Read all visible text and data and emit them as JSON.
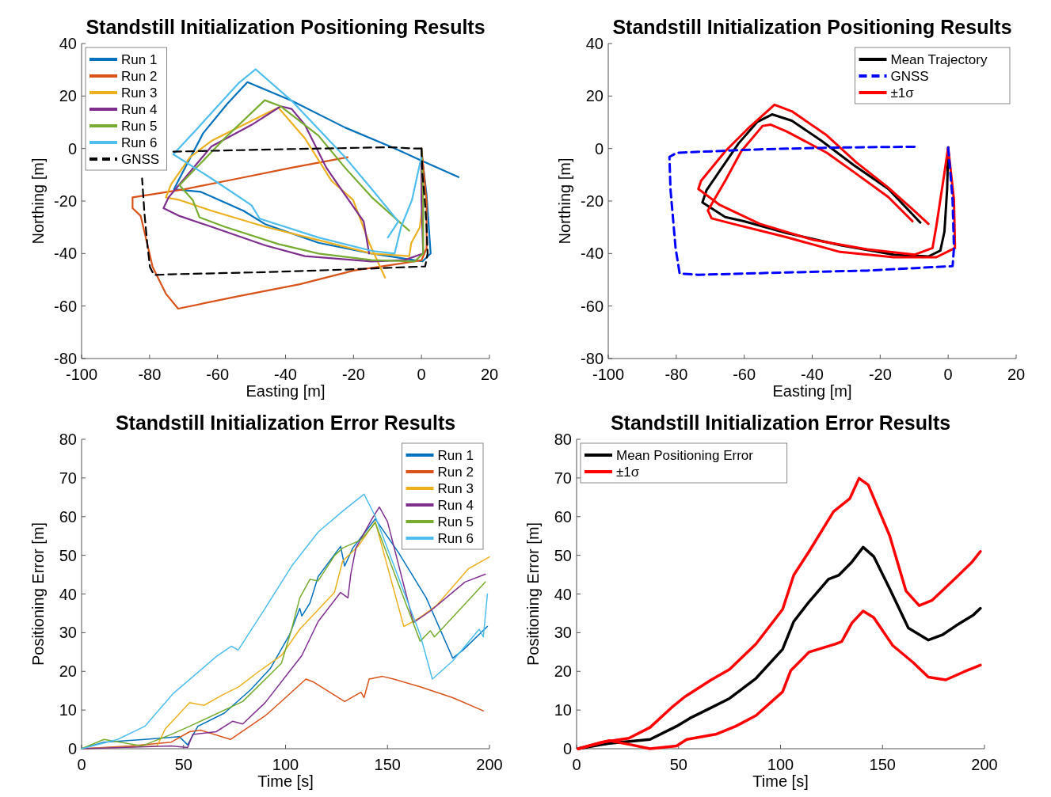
{
  "chart_data": [
    {
      "type": "line",
      "title": "Standstill Initialization Positioning Results",
      "xlabel": "Easting [m]",
      "ylabel": "Northing [m]",
      "xlim": [
        -100,
        20
      ],
      "xticks": [
        -100,
        -80,
        -60,
        -40,
        -20,
        0,
        20
      ],
      "ylim": [
        -80,
        40
      ],
      "yticks": [
        -80,
        -60,
        -40,
        -20,
        0,
        20,
        40
      ],
      "grid": false,
      "legend": "top left",
      "line_style": "solid",
      "series": [
        {
          "name": "Run 1",
          "color": "#0072bd",
          "x": [
            0,
            1.5,
            2.7,
            0.3,
            -14.6,
            -30.3,
            -46,
            -52.4,
            -64.9,
            -72.8,
            -71.2,
            -64.2,
            -57.1,
            -51.2,
            -38.2,
            -22.5,
            -8.3,
            -0.5,
            10.9
          ],
          "values": [
            -1.2,
            -17.6,
            -40,
            -43,
            -40,
            -35.9,
            -28.8,
            -23.7,
            -16.5,
            -15.5,
            -11.4,
            5.9,
            17.1,
            25.3,
            18.2,
            8,
            0.3,
            -4.3,
            -10.9
          ]
        },
        {
          "name": "Run 2",
          "color": "#d95319",
          "x": [
            0,
            1.5,
            1.5,
            0,
            -20,
            -35.8,
            -54,
            -71.6,
            -75.2,
            -79.1,
            -82.6,
            -85,
            -85,
            -69.7,
            -53.9,
            -38.2,
            -21.7
          ],
          "values": [
            0,
            -20,
            -38,
            -42.6,
            -46.5,
            -51.7,
            -56.3,
            -61,
            -55.3,
            -45.1,
            -25.7,
            -22.7,
            -18.6,
            -15.5,
            -11.4,
            -7.3,
            -3.3
          ]
        },
        {
          "name": "Run 3",
          "color": "#edb120",
          "x": [
            0,
            0.5,
            -0.5,
            -3,
            -3.6,
            -14.6,
            -30.3,
            -46,
            -61.8,
            -71.2,
            -75.2,
            -73.6,
            -68.1,
            -61.8,
            -46.1,
            -42.1,
            -34.3,
            -26.4,
            -20.1,
            -15.4,
            -10.7
          ],
          "values": [
            0,
            -20,
            -30,
            -36,
            -41,
            -40,
            -34.9,
            -29.8,
            -23.7,
            -19.6,
            -18.6,
            -13.5,
            -3.3,
            2.9,
            13.1,
            15.6,
            3.9,
            -12.4,
            -19.6,
            -35.9,
            -49.2
          ]
        },
        {
          "name": "Run 4",
          "color": "#7e2f8e",
          "x": [
            0,
            0,
            0.5,
            -5,
            -14.6,
            -34.3,
            -46,
            -61.8,
            -71.2,
            -75.9,
            -74.4,
            -61.8,
            -50,
            -41.4,
            -38.2,
            -34.3,
            -28,
            -22.5,
            -17,
            -15.4
          ],
          "values": [
            0,
            -20,
            -40,
            -42.5,
            -43,
            -41,
            -36.9,
            -29.8,
            -25.7,
            -22.7,
            -18.6,
            0.8,
            9,
            16.1,
            15.1,
            9,
            -7.3,
            -17.6,
            -27.8,
            -40
          ]
        },
        {
          "name": "Run 5",
          "color": "#77ac30",
          "x": [
            0,
            0.5,
            0.5,
            -2,
            -14.6,
            -30.3,
            -42.1,
            -57.9,
            -65.3,
            -67.3,
            -71.2,
            -57.9,
            -46.1,
            -41.4,
            -30.3,
            -22.5,
            -14.6,
            -3.6
          ],
          "values": [
            0,
            -20,
            -40,
            -43,
            -42.5,
            -40,
            -36.4,
            -29.8,
            -26.2,
            -19.6,
            -14,
            3.9,
            18.4,
            16.1,
            4.9,
            -7.3,
            -18.6,
            -31.3
          ]
        },
        {
          "name": "Run 6",
          "color": "#4dbeee",
          "x": [
            0,
            -2.8,
            -6,
            -7.9,
            -14.6,
            -30.3,
            -47.6,
            -50,
            -61.8,
            -73,
            -65.7,
            -53.9,
            -48.8,
            -38.2,
            -22.5,
            -14.6,
            -6.8,
            -9.9
          ],
          "values": [
            -3,
            -19.6,
            -29.8,
            -40,
            -39,
            -33.9,
            -26.7,
            -21.6,
            -11.4,
            -2.2,
            8,
            24.8,
            30.2,
            18.2,
            -3.3,
            -15.5,
            -27.8,
            -33.9
          ]
        },
        {
          "name": "GNSS",
          "color": "#000000",
          "line_style": "dashed",
          "x": [
            0,
            0.3,
            1,
            1.5,
            1.8,
            1.1,
            -22.5,
            -46,
            -73.6,
            -78.7,
            -79.9,
            -80.7,
            -81.5,
            -82.2,
            null,
            -73,
            -50,
            -30,
            -9,
            -2,
            0
          ],
          "values": [
            0,
            -10,
            -20,
            -30,
            -40,
            -44.9,
            -46.1,
            -47.1,
            -47.9,
            -48.2,
            -45.1,
            -35.9,
            -24.7,
            -11.4,
            null,
            -1.2,
            -0.5,
            0,
            0.5,
            0,
            0
          ]
        }
      ]
    },
    {
      "type": "line",
      "title": "Standstill Initialization Positioning Results",
      "xlabel": "Easting [m]",
      "ylabel": "Northing [m]",
      "xlim": [
        -100,
        20
      ],
      "xticks": [
        -100,
        -80,
        -60,
        -40,
        -20,
        0,
        20
      ],
      "ylim": [
        -80,
        40
      ],
      "yticks": [
        -80,
        -60,
        -40,
        -20,
        0,
        20,
        40
      ],
      "grid": false,
      "legend": "top right",
      "line_style": "solid",
      "series": [
        {
          "name": "Mean Trajectory",
          "color": "#000000",
          "x": [
            0,
            -0.3,
            -1.1,
            -2.3,
            -5.8,
            -16,
            -31.8,
            -47.5,
            -60.1,
            -65.6,
            -72.3,
            -71.1,
            -61.7,
            -56.2,
            -51.8,
            -46,
            -37.3,
            -27.9,
            -17.6,
            -8.2
          ],
          "values": [
            0,
            -15.4,
            -31.7,
            -38.9,
            -41.1,
            -40.4,
            -36.8,
            -32.2,
            -27.7,
            -26.1,
            -20.5,
            -15.9,
            1.9,
            10.1,
            13,
            10.6,
            3,
            -6.2,
            -15.4,
            -28.2
          ]
        },
        {
          "name": "GNSS",
          "color": "#0000ff",
          "line_style": "dashed",
          "x": [
            0,
            1.3,
            1.7,
            1.3,
            -23.9,
            -47.5,
            -73.5,
            -79,
            -80.2,
            -81.7,
            -82,
            -79.8,
            -55.4,
            -31.8,
            -9
          ],
          "values": [
            0.4,
            -19.5,
            -37.9,
            -44.8,
            -46.5,
            -47.2,
            -48.1,
            -47.6,
            -37.9,
            -15.4,
            -3.2,
            -1.6,
            -0.3,
            0.4,
            0.7
          ]
        },
        {
          "name": "±1σ",
          "color": "#ff0000",
          "x": [
            0,
            1.7,
            2,
            -3.5,
            -16,
            -31.8,
            -47.5,
            -63.3,
            -69.6,
            -70.7,
            -65.6,
            -60.9,
            -54.6,
            -52.3,
            -47.5,
            -35.7,
            -27.9,
            -17.6,
            -10.5
          ],
          "values": [
            0.4,
            -19.5,
            -37.9,
            -41.4,
            -41.4,
            -39.4,
            -33.8,
            -28.7,
            -26.6,
            -23.6,
            -12.3,
            -1.1,
            8.6,
            9.1,
            6.5,
            -1.6,
            -8.8,
            -18.5,
            -27.7
          ]
        },
        {
          "color": "#ff0000",
          "x": [
            0,
            -1.1,
            -3.5,
            -4.6,
            -9.8,
            -23.9,
            -39.7,
            -55.4,
            -67.2,
            -73.5,
            -72.7,
            -65.6,
            -58.5,
            -51.1,
            -46,
            -35.7,
            -27.1,
            -17.6,
            -10.1,
            -5.8
          ],
          "values": [
            0.4,
            -9.3,
            -29.7,
            -37.9,
            -40.4,
            -38.4,
            -34.8,
            -28.7,
            -21.5,
            -15.4,
            -12.3,
            -1.1,
            8.1,
            16.7,
            14.2,
            5,
            -5.2,
            -14.9,
            -23.6,
            -28.7
          ]
        }
      ]
    },
    {
      "type": "line",
      "title": "Standstill Initialization Error Results",
      "xlabel": "Time [s]",
      "ylabel": "Positioning Error [m]",
      "xlim": [
        0,
        200
      ],
      "xticks": [
        0,
        50,
        100,
        150,
        200
      ],
      "ylim": [
        0,
        80
      ],
      "yticks": [
        0,
        10,
        20,
        30,
        40,
        50,
        60,
        70,
        80
      ],
      "grid": false,
      "legend": "top right",
      "line_style": "solid",
      "series": [
        {
          "name": "Run 1",
          "color": "#0072bd",
          "x": [
            0,
            11,
            31,
            48,
            52,
            57,
            70,
            83,
            92.5,
            102,
            107,
            108,
            112,
            116,
            127,
            129,
            133,
            144,
            155.5,
            169,
            182,
            187,
            199
          ],
          "values": [
            0,
            1.7,
            2.4,
            3.1,
            1,
            5.8,
            9.2,
            15.3,
            20.7,
            29.5,
            36.3,
            34.3,
            37.7,
            44.5,
            52.3,
            47.2,
            51.9,
            59.4,
            50.6,
            39,
            23.4,
            25.5,
            31.6
          ]
        },
        {
          "name": "Run 2",
          "color": "#d95319",
          "x": [
            0,
            24,
            44,
            53,
            58.4,
            73,
            90,
            100,
            110,
            113.5,
            129,
            137,
            138.5,
            141,
            147.6,
            153,
            166,
            182,
            197
          ],
          "values": [
            0,
            0.7,
            1.7,
            4.4,
            4.8,
            2.4,
            8.5,
            13.2,
            18,
            17.3,
            12.2,
            14.6,
            13.2,
            18,
            18.7,
            18,
            16,
            13.2,
            9.8
          ]
        },
        {
          "name": "Run 3",
          "color": "#edb120",
          "x": [
            0,
            37,
            41,
            53,
            60,
            69,
            77,
            87,
            98,
            107,
            124,
            128,
            136,
            144,
            158,
            165,
            174,
            189.6,
            200
          ],
          "values": [
            0,
            0.7,
            5.1,
            11.9,
            11.2,
            13.9,
            16,
            20,
            24.1,
            30.9,
            40.4,
            48.5,
            52.6,
            58.7,
            31.6,
            33.6,
            37,
            46.5,
            49.6
          ]
        },
        {
          "name": "Run 4",
          "color": "#7e2f8e",
          "x": [
            0,
            44,
            52,
            54.5,
            66,
            74,
            79,
            90,
            108,
            116,
            127,
            130.6,
            132,
            134.5,
            142.4,
            146,
            150,
            162.7,
            171,
            188,
            198
          ],
          "values": [
            0,
            0.7,
            0.3,
            3.7,
            4.4,
            7.1,
            6.4,
            11.9,
            24.1,
            32.9,
            40.4,
            39,
            45.1,
            51.9,
            59.4,
            62.5,
            58.7,
            32.6,
            35.6,
            43.1,
            45.1
          ]
        },
        {
          "name": "Run 5",
          "color": "#77ac30",
          "x": [
            0,
            11,
            29.5,
            44,
            53,
            79,
            98,
            103,
            107,
            112,
            116,
            124,
            128,
            137,
            144,
            166,
            171,
            173,
            198
          ],
          "values": [
            0,
            2.4,
            0.7,
            3.7,
            5.8,
            12.2,
            22.1,
            30.9,
            39,
            43.8,
            43.4,
            49.9,
            51.9,
            54,
            58.4,
            27.8,
            30.5,
            28.9,
            43.1
          ]
        },
        {
          "name": "Run 6",
          "color": "#4dbeee",
          "x": [
            0,
            17.7,
            31,
            45,
            66,
            73.5,
            76.8,
            90,
            103,
            116,
            128,
            138.5,
            144,
            166,
            172,
            182,
            195,
            197,
            199
          ],
          "values": [
            0,
            2.4,
            5.8,
            14.3,
            23.8,
            26.5,
            25.5,
            36.3,
            47.2,
            56,
            61.4,
            65.8,
            60.1,
            29.5,
            18,
            22.7,
            30.9,
            28.9,
            40
          ]
        }
      ]
    },
    {
      "type": "line",
      "title": "Standstill Initialization Error Results",
      "xlabel": "Time [s]",
      "ylabel": "Positioning Error [m]",
      "xlim": [
        0,
        200
      ],
      "xticks": [
        0,
        50,
        100,
        150,
        200
      ],
      "ylim": [
        0,
        80
      ],
      "yticks": [
        0,
        10,
        20,
        30,
        40,
        50,
        60,
        70,
        80
      ],
      "grid": false,
      "legend": "top left",
      "line_style": "solid",
      "series": [
        {
          "name": "Mean Positioning Error",
          "color": "#000000",
          "x": [
            0.8,
            16,
            36,
            49,
            55.6,
            66,
            75,
            88,
            101,
            106.5,
            114,
            123.5,
            128.7,
            135,
            140.5,
            145.7,
            153.5,
            162.7,
            172.5,
            179.6,
            186,
            194.6,
            198
          ],
          "values": [
            0,
            1.4,
            2.4,
            5.8,
            7.9,
            10.6,
            13,
            18.2,
            25.7,
            32.9,
            38,
            43.8,
            44.9,
            48.3,
            52.1,
            49.7,
            41.4,
            31.2,
            28.1,
            29.5,
            31.8,
            34.6,
            36.3
          ]
        },
        {
          "name": "±1σ",
          "color": "#ff0000",
          "x": [
            0.8,
            12.5,
            25.6,
            36,
            46.5,
            53,
            66,
            75,
            88,
            101,
            106.5,
            114,
            126,
            134,
            138.5,
            143,
            153.5,
            161.5,
            168,
            174.4,
            186,
            194,
            198
          ],
          "values": [
            0,
            1.7,
            2.7,
            5.5,
            10.6,
            13.4,
            17.8,
            20.5,
            27.1,
            36,
            44.9,
            51,
            61.3,
            64.7,
            69.9,
            68.2,
            55.1,
            40.8,
            37,
            38.4,
            44.2,
            48.3,
            51
          ]
        },
        {
          "color": "#ff0000",
          "x": [
            0.8,
            16,
            27,
            36,
            49,
            54,
            68.7,
            78,
            88,
            101,
            105,
            114,
            127,
            130,
            135,
            140.5,
            145.7,
            155,
            165,
            172.5,
            181,
            190,
            198
          ],
          "values": [
            0,
            2.1,
            1,
            0,
            0.7,
            2.4,
            3.8,
            5.8,
            8.6,
            14.7,
            20.2,
            25,
            27.1,
            27.7,
            32.5,
            35.6,
            33.9,
            26.7,
            22.3,
            18.5,
            17.8,
            19.9,
            21.6
          ]
        }
      ]
    }
  ]
}
